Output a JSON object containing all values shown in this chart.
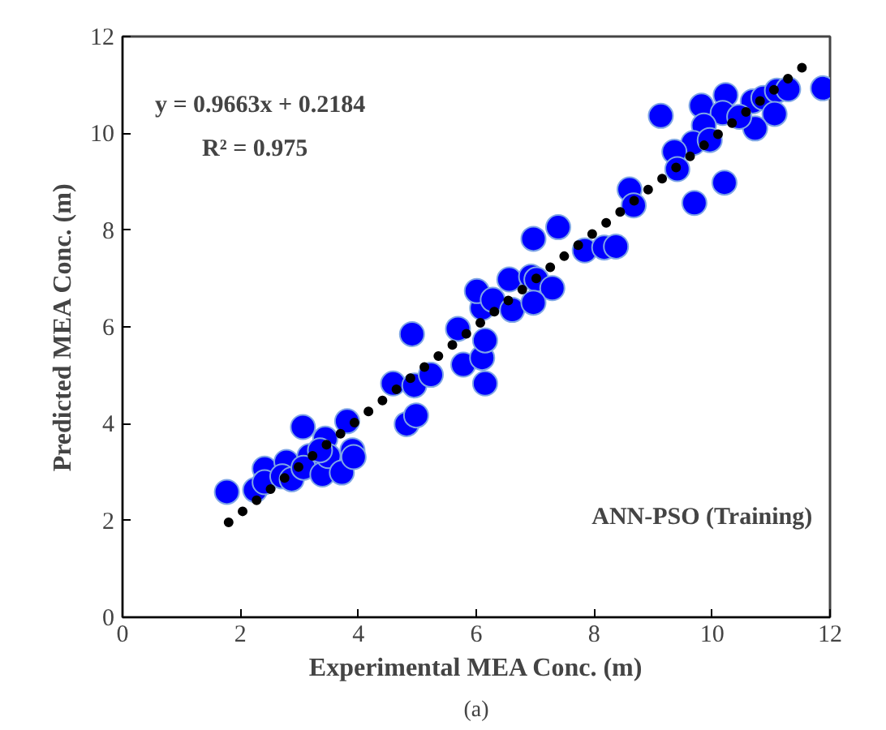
{
  "chart_data": {
    "type": "scatter",
    "xlabel": "Experimental MEA Conc. (m)",
    "ylabel": "Predicted MEA Conc. (m)",
    "xlim": [
      0,
      12
    ],
    "ylim": [
      0,
      12
    ],
    "xticks": [
      0,
      2,
      4,
      6,
      8,
      10,
      12
    ],
    "yticks": [
      0,
      2,
      4,
      6,
      8,
      10,
      12
    ],
    "grid": false,
    "series": [
      {
        "color": "#0000ff",
        "marker": "circle",
        "x": [
          1.77,
          2.25,
          2.41,
          2.41,
          2.78,
          2.71,
          2.87,
          3.06,
          3.17,
          3.07,
          3.39,
          3.44,
          3.49,
          3.72,
          3.81,
          3.9,
          3.92,
          3.35,
          4.82,
          4.98,
          4.59,
          4.95,
          4.91,
          5.23,
          5.69,
          5.78,
          6.1,
          6.15,
          6.15,
          6.1,
          6.01,
          6.28,
          6.56,
          6.61,
          6.93,
          7.02,
          7.29,
          6.97,
          6.97,
          7.39,
          7.84,
          8.17,
          8.37,
          8.6,
          8.67,
          9.7,
          10.21,
          9.13,
          9.82,
          10.23,
          10.18,
          9.86,
          9.68,
          9.36,
          9.41,
          9.96,
          10.69,
          10.87,
          11.1,
          11.29,
          11.06,
          10.73,
          10.46,
          11.88
        ],
        "values": [
          2.59,
          2.63,
          3.07,
          2.79,
          3.21,
          2.91,
          2.85,
          3.93,
          3.33,
          3.09,
          2.95,
          3.69,
          3.33,
          2.99,
          4.05,
          3.45,
          3.31,
          3.45,
          3.99,
          4.17,
          4.83,
          4.79,
          5.85,
          5.01,
          5.96,
          5.22,
          5.36,
          4.83,
          5.72,
          6.39,
          6.74,
          6.56,
          6.98,
          6.35,
          7.04,
          6.98,
          6.8,
          6.5,
          7.82,
          8.06,
          7.58,
          7.64,
          7.66,
          8.84,
          8.51,
          8.56,
          8.98,
          10.36,
          10.57,
          10.79,
          10.42,
          10.16,
          9.8,
          9.62,
          9.26,
          9.86,
          10.66,
          10.73,
          10.88,
          10.91,
          10.4,
          10.1,
          10.34,
          10.93
        ]
      },
      {
        "type": "line",
        "color": "#000000",
        "line_style": "dotted",
        "x": [
          1.8,
          11.6
        ],
        "values": [
          1.96,
          11.43
        ]
      }
    ],
    "annotations": [
      "y = 0.9663x + 0.2184",
      "R² = 0.975",
      "ANN-PSO (Training)",
      "(a)"
    ]
  }
}
